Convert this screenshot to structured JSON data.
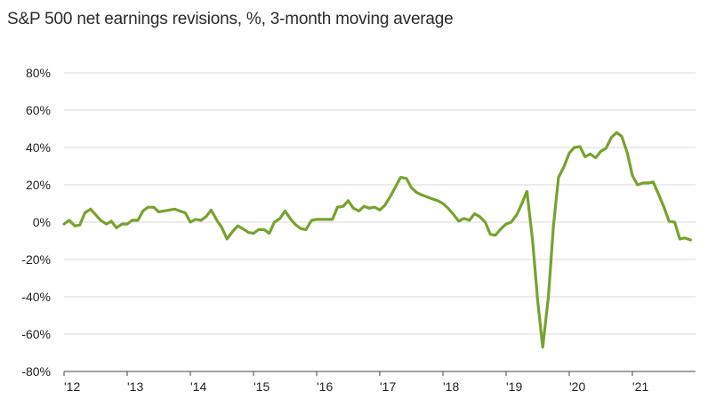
{
  "chart_data": {
    "type": "line",
    "title": "S&P 500 net earnings revisions, %, 3-month moving average",
    "xlabel": "",
    "ylabel": "",
    "ylim": [
      -80,
      80
    ],
    "y_ticks": [
      80,
      60,
      40,
      20,
      0,
      -20,
      -40,
      -60,
      -80
    ],
    "y_tick_labels": [
      "80%",
      "60%",
      "40%",
      "20%",
      "0%",
      "-20%",
      "-40%",
      "-60%",
      "-80%"
    ],
    "x_tick_labels": [
      "'12",
      "'13",
      "'14",
      "'15",
      "'16",
      "'17",
      "'18",
      "'19",
      "'20",
      "'21"
    ],
    "x_tick_positions": [
      2012,
      2013,
      2014,
      2015,
      2016,
      2017,
      2018,
      2019,
      2020,
      2021
    ],
    "xlim": [
      2012,
      2022
    ],
    "grid": "horizontal",
    "series": [
      {
        "color": "#78a22f",
        "x": [
          2012.0,
          2012.08,
          2012.17,
          2012.25,
          2012.33,
          2012.42,
          2012.5,
          2012.58,
          2012.67,
          2012.75,
          2012.83,
          2012.92,
          2013.0,
          2013.08,
          2013.17,
          2013.25,
          2013.33,
          2013.42,
          2013.5,
          2013.58,
          2013.67,
          2013.75,
          2013.83,
          2013.92,
          2014.0,
          2014.08,
          2014.17,
          2014.25,
          2014.33,
          2014.42,
          2014.5,
          2014.58,
          2014.67,
          2014.75,
          2014.83,
          2014.92,
          2015.0,
          2015.08,
          2015.17,
          2015.25,
          2015.33,
          2015.42,
          2015.5,
          2015.58,
          2015.67,
          2015.75,
          2015.83,
          2015.92,
          2016.0,
          2016.08,
          2016.17,
          2016.25,
          2016.33,
          2016.42,
          2016.5,
          2016.58,
          2016.67,
          2016.75,
          2016.83,
          2016.92,
          2017.0,
          2017.08,
          2017.17,
          2017.25,
          2017.33,
          2017.42,
          2017.5,
          2017.58,
          2017.67,
          2017.75,
          2017.83,
          2017.92,
          2018.0,
          2018.08,
          2018.17,
          2018.25,
          2018.33,
          2018.42,
          2018.5,
          2018.58,
          2018.67,
          2018.75,
          2018.83,
          2018.92,
          2019.0,
          2019.08,
          2019.17,
          2019.25,
          2019.33,
          2019.42,
          2019.5,
          2019.58,
          2019.67,
          2019.75,
          2019.83,
          2019.92,
          2020.0,
          2020.08,
          2020.17,
          2020.25,
          2020.33,
          2020.42,
          2020.5,
          2020.58,
          2020.67,
          2020.75,
          2020.83,
          2020.92,
          2021.0,
          2021.08,
          2021.17,
          2021.25,
          2021.33,
          2021.42,
          2021.5,
          2021.58,
          2021.67,
          2021.75,
          2021.83,
          2021.92
        ],
        "values": [
          -1,
          1,
          -2,
          -1.5,
          5,
          7,
          4,
          1,
          -1,
          0.5,
          -3,
          -1,
          -1,
          1,
          1,
          6,
          8,
          8,
          5.5,
          6,
          6.5,
          7,
          6,
          5,
          0,
          1.5,
          1,
          3,
          6.5,
          1,
          -3,
          -9,
          -5,
          -2,
          -3.5,
          -5.5,
          -6,
          -4,
          -4,
          -6,
          0,
          2,
          6,
          2,
          -1.5,
          -3.5,
          -4,
          1,
          1.5,
          1.5,
          1.5,
          1.5,
          8,
          8.5,
          11.5,
          7.5,
          6,
          8.5,
          7.5,
          8,
          6.5,
          9,
          14,
          19,
          24,
          23.5,
          18.5,
          16,
          14.5,
          13.5,
          12.5,
          11.5,
          10,
          7.5,
          4,
          0.5,
          2,
          1,
          4.5,
          3,
          0,
          -6.5,
          -7,
          -3.5,
          -1,
          0,
          4,
          10,
          16.5,
          -10,
          -42,
          -67,
          -40,
          -2,
          24,
          30,
          37,
          40,
          40.5,
          35,
          36.5,
          34.5,
          38,
          39.5,
          45.5,
          48,
          46,
          37,
          25,
          20,
          21,
          21,
          21.5,
          14.5,
          8,
          0.5,
          0,
          -9,
          -8.5,
          -9.5
        ]
      }
    ]
  }
}
